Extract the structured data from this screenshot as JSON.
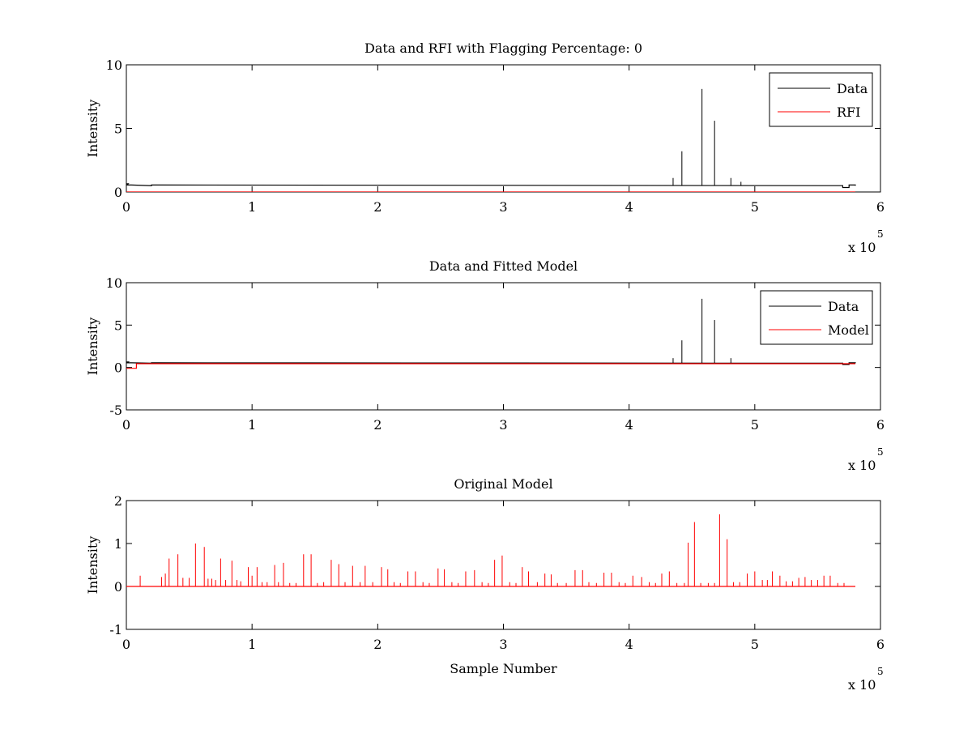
{
  "chart_data": [
    {
      "type": "line",
      "title": "Data and RFI with Flagging Percentage: 0",
      "xlabel": "",
      "ylabel": "Intensity",
      "xlim": [
        0,
        600000
      ],
      "ylim": [
        0,
        10
      ],
      "xticks": [
        "0",
        "1",
        "2",
        "3",
        "4",
        "5",
        "6"
      ],
      "yticks": [
        "0",
        "5",
        "10"
      ],
      "x_multiplier": {
        "base": "x 10",
        "exponent": "5"
      },
      "legend": {
        "placement": "top-right",
        "entries": [
          "Data",
          "RFI"
        ]
      },
      "grid": false,
      "series": [
        {
          "name": "Data",
          "color": "#000000",
          "baseline": 0.5,
          "dips": [
            [
              0,
              1500,
              0.65
            ],
            [
              500,
              4000,
              0.55
            ],
            [
              20000,
              24000,
              0.55
            ],
            [
              570000,
              575000,
              0.35
            ],
            [
              575000,
              580000,
              0.55
            ]
          ],
          "peaks": [
            [
              435000,
              1.1
            ],
            [
              442000,
              3.2
            ],
            [
              458000,
              8.1
            ],
            [
              468000,
              5.6
            ],
            [
              481000,
              1.1
            ],
            [
              489000,
              0.8
            ]
          ]
        },
        {
          "name": "RFI",
          "color": "#ff0000",
          "baseline": 0,
          "dips": [],
          "peaks": []
        }
      ]
    },
    {
      "type": "line",
      "title": "Data and Fitted Model",
      "xlabel": "",
      "ylabel": "Intensity",
      "xlim": [
        0,
        600000
      ],
      "ylim": [
        -5,
        10
      ],
      "xticks": [
        "0",
        "1",
        "2",
        "3",
        "4",
        "5",
        "6"
      ],
      "yticks": [
        "-5",
        "0",
        "5",
        "10"
      ],
      "x_multiplier": {
        "base": "x 10",
        "exponent": "5"
      },
      "legend": {
        "placement": "top-right",
        "entries": [
          "Data",
          "Model"
        ]
      },
      "grid": false,
      "series": [
        {
          "name": "Data",
          "color": "#000000",
          "baseline": 0.5,
          "dips": [
            [
              0,
              1500,
              0.65
            ],
            [
              500,
              4000,
              0.55
            ],
            [
              20000,
              24000,
              0.55
            ],
            [
              570000,
              575000,
              0.35
            ],
            [
              575000,
              580000,
              0.55
            ]
          ],
          "peaks": [
            [
              435000,
              1.1
            ],
            [
              442000,
              3.2
            ],
            [
              458000,
              8.1
            ],
            [
              468000,
              5.6
            ],
            [
              481000,
              1.1
            ]
          ]
        },
        {
          "name": "Model",
          "color": "#ff0000",
          "baseline": 0.45,
          "dips": [
            [
              0,
              8000,
              -0.1
            ]
          ],
          "peaks": []
        }
      ]
    },
    {
      "type": "line",
      "title": "Original Model",
      "xlabel": "Sample Number",
      "ylabel": "Intensity",
      "xlim": [
        0,
        600000
      ],
      "ylim": [
        -1,
        2
      ],
      "xticks": [
        "0",
        "1",
        "2",
        "3",
        "4",
        "5",
        "6"
      ],
      "yticks": [
        "-1",
        "0",
        "1",
        "2"
      ],
      "x_multiplier": {
        "base": "x 10",
        "exponent": "5"
      },
      "legend": null,
      "grid": false,
      "series": [
        {
          "name": "",
          "color": "#ff0000",
          "baseline": 0,
          "x_end": 580000,
          "dips": [],
          "peaks": [
            [
              11000,
              0.25
            ],
            [
              28000,
              0.22
            ],
            [
              31000,
              0.3
            ],
            [
              34000,
              0.65
            ],
            [
              41000,
              0.75
            ],
            [
              45000,
              0.2
            ],
            [
              50000,
              0.2
            ],
            [
              55000,
              1.0
            ],
            [
              62000,
              0.92
            ],
            [
              65000,
              0.18
            ],
            [
              68000,
              0.18
            ],
            [
              71000,
              0.15
            ],
            [
              75000,
              0.65
            ],
            [
              79000,
              0.15
            ],
            [
              84000,
              0.6
            ],
            [
              88000,
              0.15
            ],
            [
              91000,
              0.12
            ],
            [
              97000,
              0.45
            ],
            [
              100000,
              0.25
            ],
            [
              104000,
              0.45
            ],
            [
              108000,
              0.1
            ],
            [
              112000,
              0.1
            ],
            [
              118000,
              0.5
            ],
            [
              121000,
              0.1
            ],
            [
              125000,
              0.55
            ],
            [
              130000,
              0.08
            ],
            [
              135000,
              0.08
            ],
            [
              141000,
              0.75
            ],
            [
              147000,
              0.75
            ],
            [
              152000,
              0.08
            ],
            [
              157000,
              0.1
            ],
            [
              163000,
              0.62
            ],
            [
              169000,
              0.52
            ],
            [
              174000,
              0.1
            ],
            [
              180000,
              0.48
            ],
            [
              186000,
              0.1
            ],
            [
              190000,
              0.48
            ],
            [
              196000,
              0.1
            ],
            [
              203000,
              0.45
            ],
            [
              208000,
              0.4
            ],
            [
              213000,
              0.1
            ],
            [
              218000,
              0.08
            ],
            [
              224000,
              0.35
            ],
            [
              230000,
              0.35
            ],
            [
              236000,
              0.1
            ],
            [
              241000,
              0.08
            ],
            [
              248000,
              0.42
            ],
            [
              253000,
              0.4
            ],
            [
              259000,
              0.1
            ],
            [
              264000,
              0.08
            ],
            [
              270000,
              0.35
            ],
            [
              277000,
              0.38
            ],
            [
              283000,
              0.1
            ],
            [
              288000,
              0.08
            ],
            [
              293000,
              0.62
            ],
            [
              299000,
              0.72
            ],
            [
              305000,
              0.1
            ],
            [
              310000,
              0.08
            ],
            [
              315000,
              0.45
            ],
            [
              320000,
              0.35
            ],
            [
              327000,
              0.1
            ],
            [
              333000,
              0.3
            ],
            [
              338000,
              0.28
            ],
            [
              343000,
              0.08
            ],
            [
              350000,
              0.08
            ],
            [
              357000,
              0.38
            ],
            [
              363000,
              0.38
            ],
            [
              368000,
              0.1
            ],
            [
              374000,
              0.08
            ],
            [
              380000,
              0.32
            ],
            [
              386000,
              0.32
            ],
            [
              392000,
              0.1
            ],
            [
              397000,
              0.08
            ],
            [
              403000,
              0.25
            ],
            [
              410000,
              0.22
            ],
            [
              416000,
              0.1
            ],
            [
              421000,
              0.08
            ],
            [
              426000,
              0.3
            ],
            [
              432000,
              0.35
            ],
            [
              438000,
              0.08
            ],
            [
              444000,
              0.08
            ],
            [
              447000,
              1.02
            ],
            [
              452000,
              1.5
            ],
            [
              457000,
              0.08
            ],
            [
              463000,
              0.08
            ],
            [
              468000,
              0.08
            ],
            [
              472000,
              1.68
            ],
            [
              478000,
              1.1
            ],
            [
              483000,
              0.1
            ],
            [
              488000,
              0.1
            ],
            [
              494000,
              0.3
            ],
            [
              500000,
              0.35
            ],
            [
              506000,
              0.15
            ],
            [
              510000,
              0.15
            ],
            [
              514000,
              0.35
            ],
            [
              520000,
              0.25
            ],
            [
              525000,
              0.12
            ],
            [
              530000,
              0.12
            ],
            [
              535000,
              0.2
            ],
            [
              540000,
              0.22
            ],
            [
              545000,
              0.15
            ],
            [
              550000,
              0.15
            ],
            [
              555000,
              0.25
            ],
            [
              560000,
              0.25
            ],
            [
              566000,
              0.08
            ],
            [
              571000,
              0.08
            ]
          ]
        }
      ]
    }
  ]
}
